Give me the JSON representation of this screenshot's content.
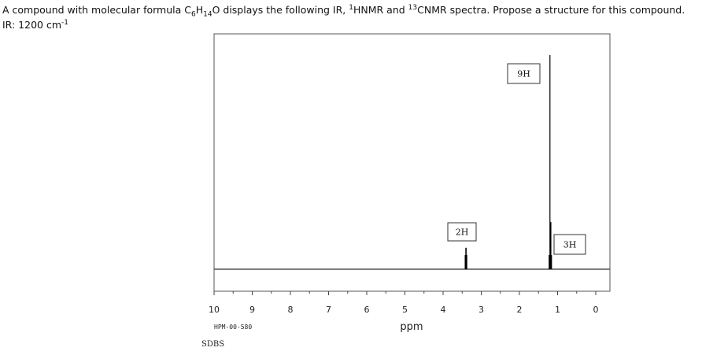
{
  "question": {
    "prefix": "A compound with molecular formula C",
    "c_sub": "6",
    "h_text": "H",
    "h_sub": "14",
    "o_text": "O displays the following IR, ",
    "h_sup": "1",
    "hnmr_text": "HNMR and ",
    "c_sup": "13",
    "suffix": "CNMR spectra. Propose a structure for this compound."
  },
  "ir": {
    "prefix": "IR: 1200 cm",
    "sup": "-1"
  },
  "chart_data": {
    "type": "line",
    "xlabel": "ppm",
    "xlim": [
      10,
      0
    ],
    "x_reversed": true,
    "ticks": [
      "10",
      "9",
      "8",
      "7",
      "6",
      "5",
      "4",
      "3",
      "2",
      "1",
      "0"
    ],
    "peaks": [
      {
        "shift": 3.4,
        "rel_height": 0.1,
        "integration": "2H"
      },
      {
        "shift": 1.2,
        "rel_height": 1.0,
        "integration": "9H"
      },
      {
        "shift": 1.18,
        "rel_height": 0.22,
        "integration": "3H"
      }
    ],
    "code": "HPM-00-580",
    "source": "SDBS"
  }
}
